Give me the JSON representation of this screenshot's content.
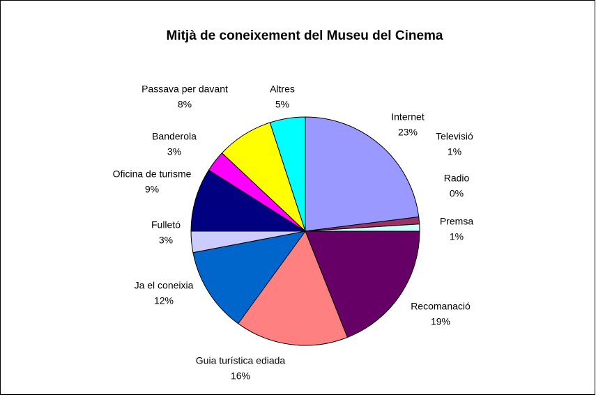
{
  "chart_data": {
    "type": "pie",
    "title": "Mitjà de coneixement del Museu del Cinema",
    "categories": [
      "Internet",
      "Televisió",
      "Radio",
      "Premsa",
      "Recomanació",
      "Guia turística ediada",
      "Ja el coneixia",
      "Fulletó",
      "Oficina de turisme",
      "Banderola",
      "Passava per davant",
      "Altres"
    ],
    "values": [
      23,
      1,
      0,
      1,
      19,
      16,
      12,
      3,
      9,
      3,
      8,
      5
    ],
    "value_labels": [
      "23%",
      "1%",
      "0%",
      "1%",
      "19%",
      "16%",
      "12%",
      "3%",
      "9%",
      "3%",
      "8%",
      "5%"
    ],
    "colors": [
      "#9999ff",
      "#993366",
      "#ffffcc",
      "#ccffff",
      "#660066",
      "#ff8080",
      "#0066cc",
      "#ccccff",
      "#000080",
      "#ff00ff",
      "#ffff00",
      "#00ffff"
    ]
  }
}
